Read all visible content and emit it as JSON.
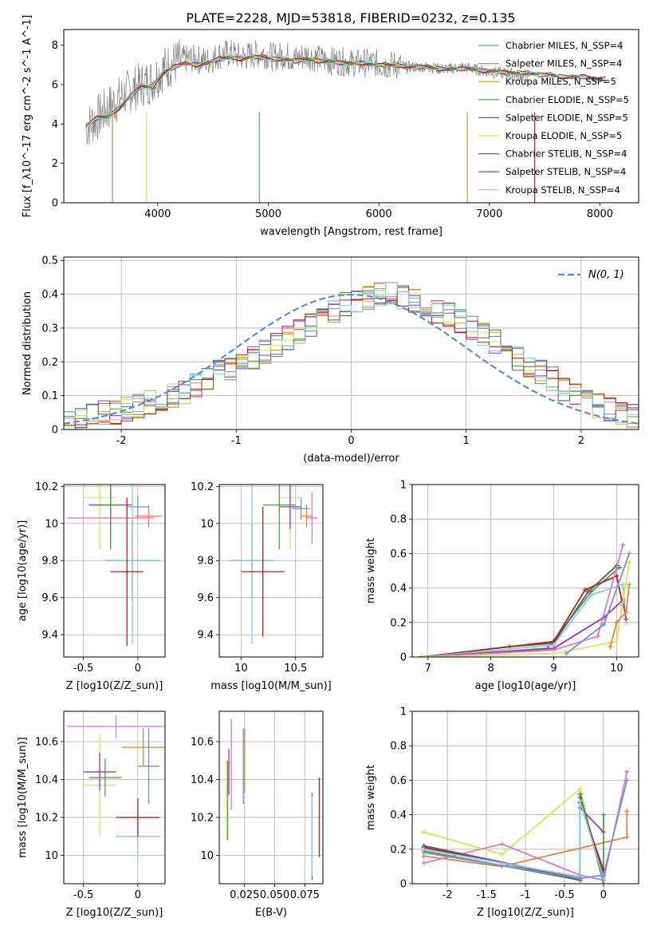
{
  "title": "PLATE=2228, MJD=53818, FIBERID=0232, z=0.135",
  "chart_data": [
    {
      "id": "spectrum",
      "type": "line",
      "xlabel": "wavelength [Angstrom, rest frame]",
      "ylabel": "Flux [f_λ10^-17 erg cm^-2 s^-1 A^-1]",
      "xlim": [
        3150,
        8350
      ],
      "ylim": [
        0,
        8.8
      ],
      "xticks": [
        4000,
        5000,
        6000,
        7000,
        8000
      ],
      "yticks": [
        0,
        2,
        4,
        6,
        8
      ],
      "data_line": {
        "name": "data",
        "color": "#808080",
        "x": [
          3350,
          3450,
          3550,
          3650,
          3750,
          3850,
          3950,
          4050,
          4150,
          4250,
          4350,
          4450,
          4550,
          4650,
          4750,
          4850,
          4950,
          5050,
          5150,
          5250,
          5350,
          5450,
          5550,
          5650,
          5750,
          5850,
          5950,
          6050,
          6150,
          6250,
          6350,
          6450,
          6550,
          6650,
          6750,
          6850,
          6950,
          7050,
          7150,
          7250,
          7350
        ],
        "y": [
          3.8,
          4.3,
          4.8,
          5.3,
          5.7,
          6.0,
          6.2,
          6.8,
          7.1,
          7.3,
          7.3,
          7.2,
          7.5,
          7.6,
          7.4,
          7.5,
          7.6,
          7.4,
          7.5,
          7.3,
          7.5,
          7.3,
          7.2,
          7.2,
          7.1,
          7.1,
          7.1,
          7.0,
          7.0,
          6.9,
          6.9,
          6.9,
          6.8,
          6.8,
          6.9,
          6.8,
          6.7,
          6.6,
          6.6,
          6.5,
          6.4
        ]
      },
      "model_wavelength": [
        3350,
        3450,
        3550,
        3650,
        3750,
        3850,
        3950,
        4050,
        4150,
        4250,
        4350,
        4450,
        4550,
        4650,
        4750,
        4850,
        4950,
        5050,
        5150,
        5250,
        5350,
        5450,
        5550,
        5650,
        5750,
        5850,
        5950,
        6050,
        6150,
        6250,
        6350,
        6450,
        6550,
        6650,
        6750,
        6850,
        6950,
        7050,
        7150,
        7250,
        7350,
        7450,
        7550,
        7650,
        7750,
        7850,
        7950,
        8050
      ],
      "model_flux": [
        3.9,
        4.3,
        4.4,
        4.8,
        5.4,
        5.9,
        5.9,
        6.6,
        6.9,
        7.1,
        7.0,
        7.1,
        7.3,
        7.4,
        7.3,
        7.4,
        7.4,
        7.3,
        7.3,
        7.2,
        7.3,
        7.2,
        7.2,
        7.1,
        7.1,
        7.1,
        7.0,
        7.0,
        7.0,
        6.9,
        6.9,
        6.9,
        6.8,
        6.8,
        6.8,
        6.8,
        6.7,
        6.7,
        6.6,
        6.6,
        6.6,
        6.5,
        6.5,
        6.4,
        6.4,
        6.4,
        6.3,
        6.3
      ],
      "legend_position": "upper right",
      "series": [
        {
          "name": "Chabrier MILES, N_SSP=4",
          "color": "#6f93dc"
        },
        {
          "name": "Salpeter MILES, N_SSP=4",
          "color": "#e8823a"
        },
        {
          "name": "Kroupa MILES, N_SSP=5",
          "color": "#d19a2b"
        },
        {
          "name": "Chabrier ELODIE, N_SSP=5",
          "color": "#4f9a4f"
        },
        {
          "name": "Salpeter ELODIE, N_SSP=5",
          "color": "#9b36b5"
        },
        {
          "name": "Kroupa ELODIE, N_SSP=5",
          "color": "#d6e84d"
        },
        {
          "name": "Chabrier STELIB, N_SSP=4",
          "color": "#606060"
        },
        {
          "name": "Salpeter STELIB, N_SSP=4",
          "color": "#b21f1f"
        },
        {
          "name": "Kroupa STELIB, N_SSP=4",
          "color": "#7fd3dd"
        }
      ]
    },
    {
      "id": "residuals",
      "type": "step",
      "xlabel": "(data-model)/error",
      "ylabel": "Normed distribution",
      "xlim": [
        -2.5,
        2.5
      ],
      "ylim": [
        0,
        0.51
      ],
      "xticks": [
        -2,
        -1,
        0,
        1,
        2
      ],
      "yticks": [
        0.0,
        0.1,
        0.2,
        0.3,
        0.4,
        0.5
      ],
      "grid": true,
      "legend_position": "upper right",
      "legend": "N(0, 1)",
      "gaussian_color": "#5b8bd9",
      "bin_edges_start": -2.5,
      "bin_width": 0.1,
      "base_values": [
        0.02,
        0.03,
        0.04,
        0.05,
        0.05,
        0.06,
        0.07,
        0.08,
        0.09,
        0.1,
        0.11,
        0.13,
        0.15,
        0.17,
        0.18,
        0.2,
        0.21,
        0.23,
        0.25,
        0.27,
        0.29,
        0.31,
        0.33,
        0.35,
        0.37,
        0.38,
        0.39,
        0.4,
        0.4,
        0.39,
        0.38,
        0.37,
        0.35,
        0.34,
        0.32,
        0.3,
        0.28,
        0.26,
        0.24,
        0.21,
        0.19,
        0.17,
        0.15,
        0.12,
        0.1,
        0.08,
        0.07,
        0.06,
        0.05,
        0.04
      ]
    },
    {
      "id": "age-vs-Z",
      "type": "errorbar",
      "xlabel": "Z [log10(Z/Z_sun)]",
      "ylabel": "age [log10(age/yr)]",
      "xlim": [
        -0.68,
        0.25
      ],
      "ylim": [
        9.28,
        10.21
      ],
      "xticks": [
        -0.5,
        0.0
      ],
      "yticks": [
        9.4,
        9.6,
        9.8,
        10.0,
        10.2
      ]
    },
    {
      "id": "age-vs-mass",
      "type": "errorbar",
      "xlabel": "mass [log10(M/M_sun)]",
      "ylabel": "",
      "xlim": [
        9.8,
        10.75
      ],
      "ylim": [
        9.28,
        10.21
      ],
      "xticks": [
        10.0,
        10.5
      ],
      "yticks": [
        9.4,
        9.6,
        9.8,
        10.0,
        10.2
      ]
    },
    {
      "id": "weight-vs-age",
      "type": "line",
      "xlabel": "age [log10(age/yr)]",
      "ylabel": "mass weight",
      "xlim": [
        6.75,
        10.35
      ],
      "ylim": [
        0,
        1.0
      ],
      "xticks": [
        7,
        8,
        9,
        10
      ],
      "yticks": [
        0.0,
        0.2,
        0.4,
        0.6,
        0.8,
        1.0
      ],
      "grid": true,
      "series": [
        {
          "color": "#4f9a4f",
          "x": [
            6.9,
            8.9,
            9.6,
            10.05
          ],
          "y": [
            0.0,
            0.05,
            0.38,
            0.52
          ]
        },
        {
          "color": "#606060",
          "x": [
            6.9,
            8.3,
            9.0,
            9.55,
            10.0
          ],
          "y": [
            0.0,
            0.06,
            0.08,
            0.38,
            0.53
          ]
        },
        {
          "color": "#b21f1f",
          "x": [
            6.9,
            9.0,
            9.5,
            10.0,
            10.1
          ],
          "y": [
            0.0,
            0.09,
            0.39,
            0.47,
            0.3
          ]
        },
        {
          "color": "#7fd3dd",
          "x": [
            6.9,
            9.0,
            9.6,
            10.1,
            10.15
          ],
          "y": [
            0.0,
            0.07,
            0.36,
            0.42,
            0.2
          ]
        },
        {
          "color": "#9b36b5",
          "x": [
            6.9,
            9.0,
            9.8,
            10.1,
            10.15
          ],
          "y": [
            0.0,
            0.05,
            0.23,
            0.33,
            0.22
          ]
        },
        {
          "color": "#e377c2",
          "x": [
            6.9,
            9.0,
            9.7,
            10.1
          ],
          "y": [
            0.0,
            0.04,
            0.12,
            0.65
          ]
        },
        {
          "color": "#d6e84d",
          "x": [
            6.9,
            9.0,
            10.0,
            10.2
          ],
          "y": [
            0.0,
            0.02,
            0.09,
            0.55
          ]
        },
        {
          "color": "#e8823a",
          "x": [
            9.9,
            10.0,
            10.15,
            10.2
          ],
          "y": [
            0.06,
            0.2,
            0.26,
            0.42
          ]
        },
        {
          "color": "#6f93dc",
          "x": [
            9.2,
            9.8,
            10.2
          ],
          "y": [
            0.02,
            0.19,
            0.6
          ]
        }
      ]
    },
    {
      "id": "mass-vs-Z",
      "type": "errorbar",
      "xlabel": "Z [log10(Z/Z_sun)]",
      "ylabel": "mass [log10(M/M_sun)]",
      "xlim": [
        -0.68,
        0.25
      ],
      "ylim": [
        9.85,
        10.76
      ],
      "xticks": [
        -0.5,
        0.0
      ],
      "yticks": [
        10.0,
        10.2,
        10.4,
        10.6
      ]
    },
    {
      "id": "mass-vs-ebv",
      "type": "errorbar",
      "xlabel": "E(B-V)",
      "ylabel": "",
      "xlim": [
        0.004,
        0.09
      ],
      "ylim": [
        9.85,
        10.76
      ],
      "xticks": [
        0.025,
        0.05,
        0.075
      ],
      "xticklabels": [
        "0.025",
        "0.050",
        "0.075"
      ],
      "yticks": [
        10.0,
        10.2,
        10.4,
        10.6
      ]
    },
    {
      "id": "weight-vs-Z",
      "type": "line",
      "xlabel": "Z [log10(Z/Z_sun)]",
      "ylabel": "mass weight",
      "xlim": [
        -2.45,
        0.45
      ],
      "ylim": [
        0,
        1.0
      ],
      "xticks": [
        -2.0,
        -1.5,
        -1.0,
        -0.5,
        0.0
      ],
      "yticks": [
        0.0,
        0.2,
        0.4,
        0.6,
        0.8,
        1.0
      ],
      "grid": true,
      "series": [
        {
          "color": "#d6e84d",
          "x": [
            -2.3,
            -1.3,
            -0.3,
            0.0
          ],
          "y": [
            0.3,
            0.17,
            0.55,
            0.0
          ]
        },
        {
          "color": "#e377c2",
          "x": [
            -2.3,
            -1.3,
            -0.3,
            0.0,
            0.3
          ],
          "y": [
            0.12,
            0.23,
            0.05,
            0.02,
            0.65
          ]
        },
        {
          "color": "#e8823a",
          "x": [
            -2.3,
            -1.3,
            0.3,
            0.3
          ],
          "y": [
            0.16,
            0.1,
            0.27,
            0.42
          ]
        },
        {
          "color": "#9b36b5",
          "x": [
            -2.3,
            -0.3,
            -0.3,
            0.0
          ],
          "y": [
            0.22,
            0.03,
            0.44,
            0.3
          ]
        },
        {
          "color": "#4f9a4f",
          "x": [
            -2.3,
            -0.3,
            -0.3,
            0.0,
            0.0
          ],
          "y": [
            0.19,
            0.02,
            0.52,
            0.0,
            0.4
          ]
        },
        {
          "color": "#606060",
          "x": [
            -2.3,
            -0.3,
            -0.3,
            0.0
          ],
          "y": [
            0.22,
            0.02,
            0.5,
            0.05
          ]
        },
        {
          "color": "#b21f1f",
          "x": [
            -2.3,
            -0.3,
            -0.3,
            0.0
          ],
          "y": [
            0.21,
            0.03,
            0.47,
            0.08
          ]
        },
        {
          "color": "#7fd3dd",
          "x": [
            -2.3,
            -0.3,
            -0.3,
            0.0
          ],
          "y": [
            0.2,
            0.04,
            0.48,
            0.03
          ]
        },
        {
          "color": "#6f93dc",
          "x": [
            -2.3,
            -0.3,
            0.0,
            0.3
          ],
          "y": [
            0.18,
            0.03,
            0.05,
            0.6
          ]
        }
      ]
    }
  ],
  "errorbars": {
    "age_vs_Z": [
      {
        "c": "#d6e84d",
        "x": -0.35,
        "y": 10.14,
        "xe": 0.15,
        "ye": 0.28
      },
      {
        "c": "#e377c2",
        "x": -0.25,
        "y": 10.03,
        "xe": 0.4,
        "ye": 0.15
      },
      {
        "c": "#9b36b5",
        "x": -0.25,
        "y": 10.1,
        "xe": 0.2,
        "ye": 0.12
      },
      {
        "c": "#4f9a4f",
        "x": -0.25,
        "y": 10.1,
        "xe": 0.1,
        "ye": 0.24
      },
      {
        "c": "#e8823a",
        "x": 0.1,
        "y": 10.04,
        "xe": 0.12,
        "ye": 0.06
      },
      {
        "c": "#6f93dc",
        "x": 0.0,
        "y": 10.09,
        "xe": 0.1,
        "ye": 0.06
      },
      {
        "c": "#606060",
        "x": -0.05,
        "y": 9.8,
        "xe": 0.25,
        "ye": 0.22
      },
      {
        "c": "#7fd3dd",
        "x": -0.05,
        "y": 9.8,
        "xe": 0.25,
        "ye": 0.45
      },
      {
        "c": "#b21f1f",
        "x": -0.1,
        "y": 9.74,
        "xe": 0.15,
        "ye": 0.4
      }
    ],
    "age_vs_mass": [
      {
        "c": "#d6e84d",
        "x": 10.45,
        "y": 10.14,
        "xe": 0.1,
        "ye": 0.28
      },
      {
        "c": "#e377c2",
        "x": 10.65,
        "y": 10.03,
        "xe": 0.05,
        "ye": 0.14
      },
      {
        "c": "#9b36b5",
        "x": 10.45,
        "y": 10.09,
        "xe": 0.1,
        "ye": 0.12
      },
      {
        "c": "#4f9a4f",
        "x": 10.35,
        "y": 10.1,
        "xe": 0.15,
        "ye": 0.24
      },
      {
        "c": "#e8823a",
        "x": 10.6,
        "y": 10.04,
        "xe": 0.05,
        "ye": 0.06
      },
      {
        "c": "#6f93dc",
        "x": 10.55,
        "y": 10.08,
        "xe": 0.08,
        "ye": 0.06
      },
      {
        "c": "#606060",
        "x": 10.1,
        "y": 9.8,
        "xe": 0.2,
        "ye": 0.2
      },
      {
        "c": "#7fd3dd",
        "x": 10.1,
        "y": 9.8,
        "xe": 0.2,
        "ye": 0.45
      },
      {
        "c": "#b21f1f",
        "x": 10.2,
        "y": 9.74,
        "xe": 0.2,
        "ye": 0.35
      }
    ],
    "mass_vs_Z": [
      {
        "c": "#d6e84d",
        "x": -0.35,
        "y": 10.37,
        "xe": 0.15,
        "ye": 0.27
      },
      {
        "c": "#e377c2",
        "x": -0.2,
        "y": 10.68,
        "xe": 0.45,
        "ye": 0.06
      },
      {
        "c": "#9b36b5",
        "x": -0.35,
        "y": 10.44,
        "xe": 0.15,
        "ye": 0.1
      },
      {
        "c": "#4f9a4f",
        "x": -0.3,
        "y": 10.41,
        "xe": 0.15,
        "ye": 0.1
      },
      {
        "c": "#e8823a",
        "x": 0.05,
        "y": 10.57,
        "xe": 0.2,
        "ye": 0.1
      },
      {
        "c": "#6f93dc",
        "x": 0.1,
        "y": 10.47,
        "xe": 0.1,
        "ye": 0.2
      },
      {
        "c": "#606060",
        "x": 0.0,
        "y": 10.1,
        "xe": 0.2,
        "ye": 0.05
      },
      {
        "c": "#7fd3dd",
        "x": 0.0,
        "y": 10.1,
        "xe": 0.2,
        "ye": 0.13
      },
      {
        "c": "#b21f1f",
        "x": 0.0,
        "y": 10.2,
        "xe": 0.2,
        "ye": 0.1
      }
    ],
    "mass_vs_ebv": [
      {
        "c": "#d6e84d",
        "x": 0.01,
        "y": 10.29,
        "ye": 0.21
      },
      {
        "c": "#e377c2",
        "x": 0.014,
        "y": 10.48,
        "ye": 0.24
      },
      {
        "c": "#9b36b5",
        "x": 0.012,
        "y": 10.44,
        "ye": 0.12
      },
      {
        "c": "#4f9a4f",
        "x": 0.011,
        "y": 10.29,
        "ye": 0.21
      },
      {
        "c": "#e8823a",
        "x": 0.025,
        "y": 10.5,
        "ye": 0.17
      },
      {
        "c": "#6f93dc",
        "x": 0.024,
        "y": 10.47,
        "ye": 0.2
      },
      {
        "c": "#606060",
        "x": 0.081,
        "y": 10.1,
        "ye": 0.23
      },
      {
        "c": "#7fd3dd",
        "x": 0.081,
        "y": 10.1,
        "ye": 0.21
      },
      {
        "c": "#b21f1f",
        "x": 0.087,
        "y": 10.2,
        "ye": 0.21
      }
    ]
  }
}
